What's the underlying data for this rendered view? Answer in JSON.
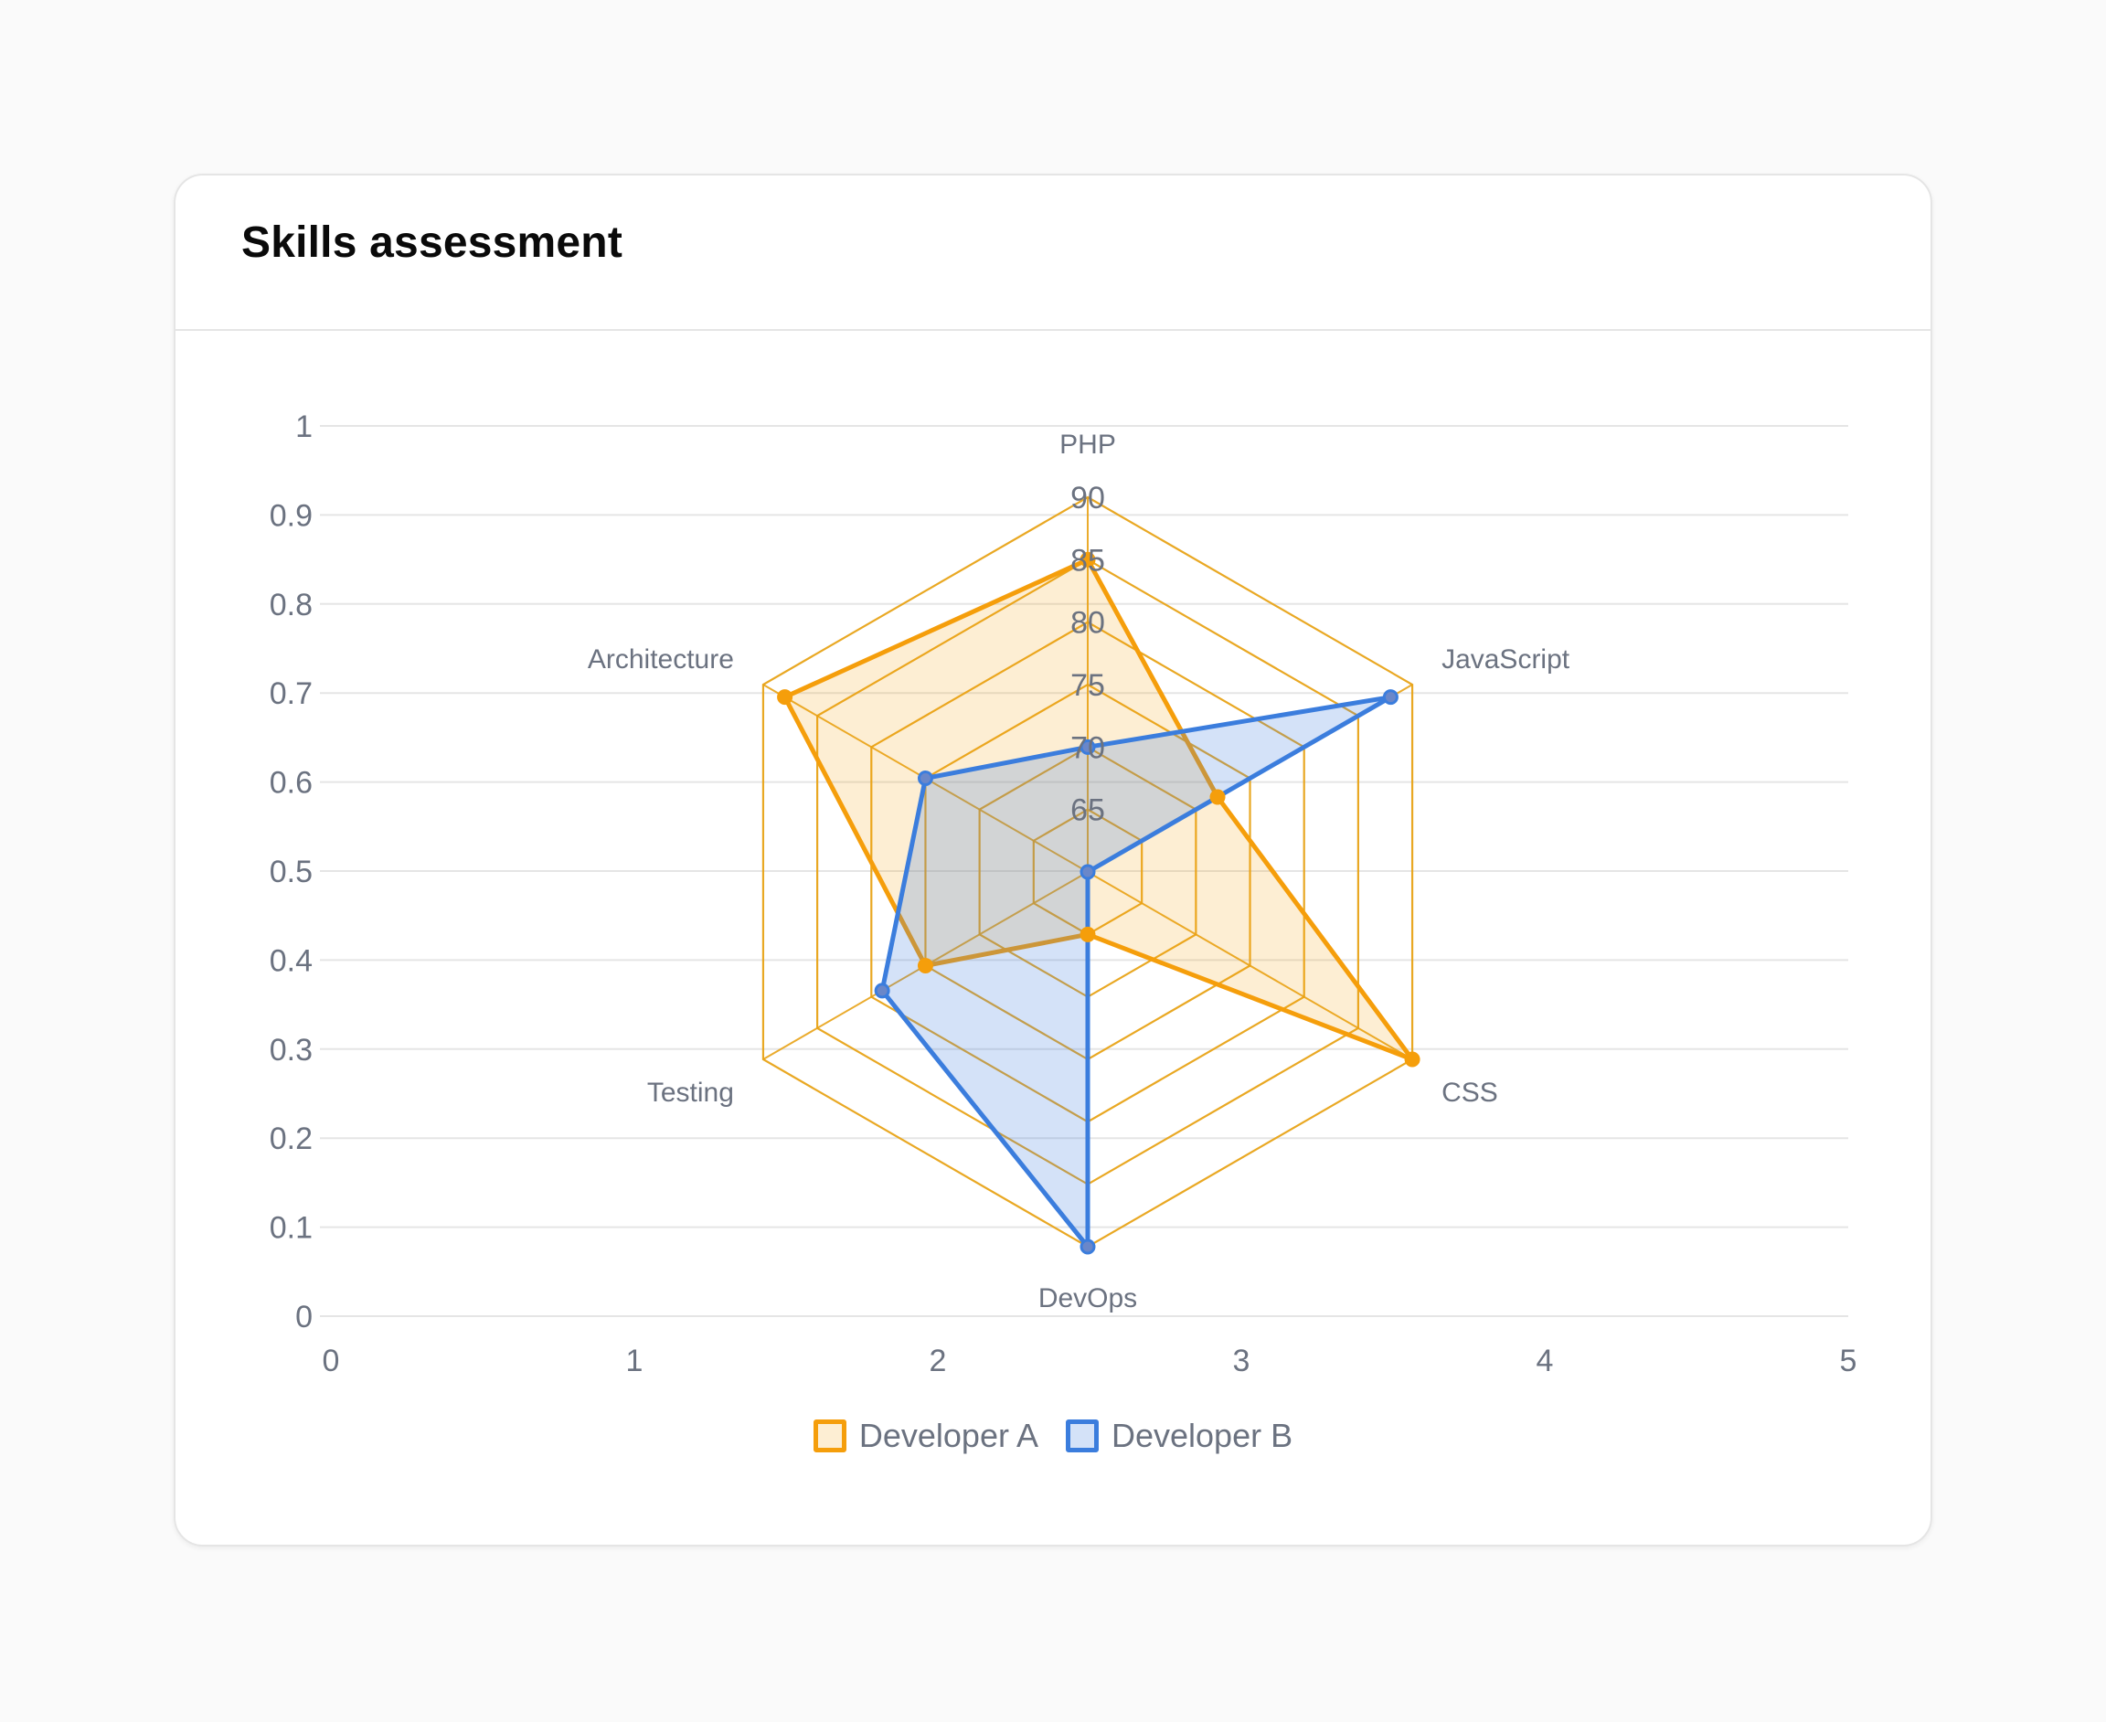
{
  "card": {
    "title": "Skills assessment"
  },
  "chart_data": {
    "type": "radar",
    "background_axes": {
      "x_ticks": [
        "0",
        "1",
        "2",
        "3",
        "4",
        "5"
      ],
      "y_ticks": [
        "0",
        "0.1",
        "0.2",
        "0.3",
        "0.4",
        "0.5",
        "0.6",
        "0.7",
        "0.8",
        "0.9",
        "1"
      ],
      "xlim": [
        0,
        5
      ],
      "ylim": [
        0,
        1
      ],
      "grid": "horizontal"
    },
    "axes": [
      "PHP",
      "JavaScript",
      "CSS",
      "DevOps",
      "Testing",
      "Architecture"
    ],
    "radial_range": [
      60,
      90
    ],
    "radial_ticks": [
      "65",
      "70",
      "75",
      "80",
      "85",
      "90"
    ],
    "series": [
      {
        "name": "Developer A",
        "values": [
          85,
          72,
          90,
          65,
          75,
          88
        ],
        "color": "#f59e0b",
        "fill": "rgba(245,158,11,0.18)"
      },
      {
        "name": "Developer B",
        "values": [
          70,
          88,
          60,
          90,
          79,
          75
        ],
        "color": "#3b7ddd",
        "fill": "rgba(59,125,221,0.22)"
      }
    ],
    "legend_position": "bottom"
  }
}
